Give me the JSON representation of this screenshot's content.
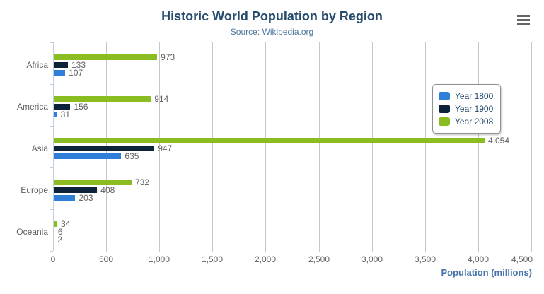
{
  "chart": {
    "title": "Historic World Population by Region",
    "subtitle": "Source: Wikipedia.org",
    "menu_button": "hamburger-icon"
  },
  "chart_data": {
    "type": "bar",
    "orientation": "horizontal",
    "title": "Historic World Population by Region",
    "subtitle": "Source: Wikipedia.org",
    "categories": [
      "Africa",
      "America",
      "Asia",
      "Europe",
      "Oceania"
    ],
    "series": [
      {
        "name": "Year 1800",
        "color": "#2f7ed8",
        "values": [
          107,
          31,
          635,
          203,
          2
        ]
      },
      {
        "name": "Year 1900",
        "color": "#0d233a",
        "values": [
          133,
          156,
          947,
          408,
          6
        ]
      },
      {
        "name": "Year 2008",
        "color": "#8bbc21",
        "values": [
          973,
          914,
          4054,
          732,
          34
        ]
      }
    ],
    "bar_order_top_to_bottom": [
      "Year 2008",
      "Year 1900",
      "Year 1800"
    ],
    "xlabel": "Population (millions)",
    "ylabel": "",
    "xlim": [
      0,
      4500
    ],
    "xticks": [
      0,
      500,
      1000,
      1500,
      2000,
      2500,
      3000,
      3500,
      4000,
      4500
    ],
    "xtick_labels": [
      "0",
      "500",
      "1,000",
      "1,500",
      "2,000",
      "2,500",
      "3,000",
      "3,500",
      "4,000",
      "4,500"
    ],
    "data_labels": true,
    "grid": true,
    "legend_position": "right-inside"
  },
  "colors": {
    "title": "#274b6d",
    "subtitle": "#4d759e",
    "labels": "#606060",
    "axis_line": "#c0d0e0",
    "grid_line": "#c7c7c7",
    "axis_title": "#4572a7",
    "legend_border": "#909090",
    "menu_icon": "#666666",
    "background": "#ffffff"
  }
}
